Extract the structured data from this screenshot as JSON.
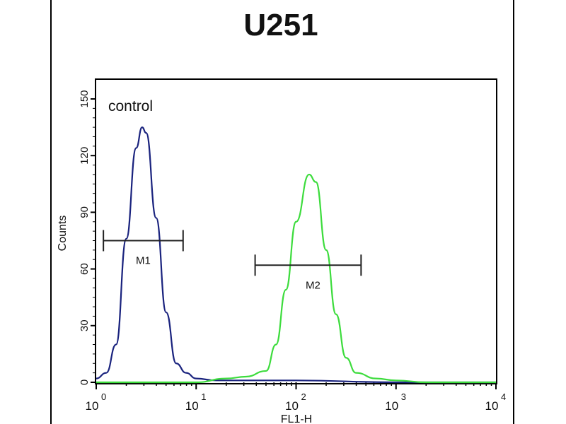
{
  "chart_data": {
    "type": "line",
    "title": "U251",
    "xlabel": "FL1-H",
    "ylabel": "Counts",
    "x_scale": "log",
    "xlim": [
      1,
      10000
    ],
    "ylim": [
      0,
      160
    ],
    "x_ticks": [
      {
        "base": "10",
        "exp": "0"
      },
      {
        "base": "10",
        "exp": "1"
      },
      {
        "base": "10",
        "exp": "2"
      },
      {
        "base": "10",
        "exp": "3"
      },
      {
        "base": "10",
        "exp": "4"
      }
    ],
    "y_ticks": [
      "0",
      "30",
      "60",
      "90",
      "120",
      "150"
    ],
    "annotation": "control",
    "series": [
      {
        "color": "#1a237e",
        "points": [
          [
            1,
            2
          ],
          [
            1.26,
            5
          ],
          [
            1.58,
            20
          ],
          [
            2.0,
            76
          ],
          [
            2.51,
            124
          ],
          [
            2.88,
            135
          ],
          [
            3.16,
            132
          ],
          [
            3.98,
            87
          ],
          [
            5.01,
            37
          ],
          [
            6.31,
            10
          ],
          [
            7.94,
            5
          ],
          [
            10,
            2
          ],
          [
            15.8,
            1
          ],
          [
            100,
            1
          ],
          [
            1000,
            0
          ],
          [
            10000,
            0
          ]
        ]
      },
      {
        "color": "#3ddc3d",
        "points": [
          [
            1,
            0
          ],
          [
            10,
            0
          ],
          [
            20,
            2
          ],
          [
            31.6,
            3
          ],
          [
            50,
            6
          ],
          [
            63,
            20
          ],
          [
            79,
            49
          ],
          [
            100,
            85
          ],
          [
            135,
            110
          ],
          [
            158,
            106
          ],
          [
            200,
            70
          ],
          [
            251,
            36
          ],
          [
            316,
            13
          ],
          [
            398,
            5
          ],
          [
            631,
            2
          ],
          [
            1000,
            1
          ],
          [
            2000,
            0
          ],
          [
            10000,
            0
          ]
        ]
      }
    ],
    "markers": [
      {
        "label": "M1",
        "x_range": [
          1.18,
          7.4
        ],
        "y": 75
      },
      {
        "label": "M2",
        "x_range": [
          38.9,
          447
        ],
        "y": 62
      }
    ],
    "grid": false
  }
}
